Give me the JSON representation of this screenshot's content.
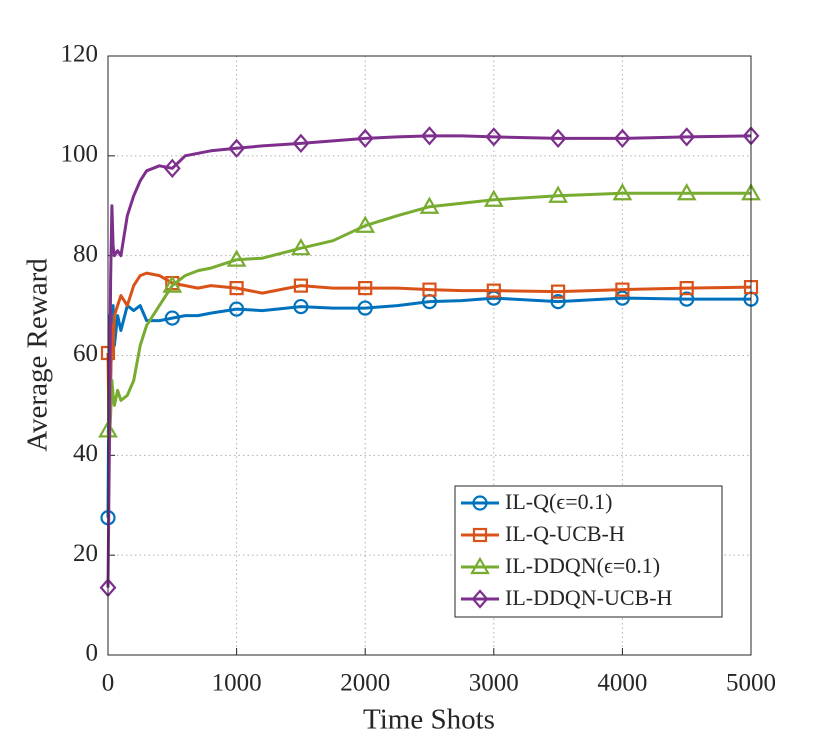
{
  "chart_data": {
    "type": "line",
    "x_label": "Time Shots",
    "y_label": "Average Reward",
    "x": [
      0,
      10,
      20,
      30,
      40,
      50,
      75,
      100,
      150,
      200,
      250,
      300,
      400,
      500,
      600,
      700,
      800,
      1000,
      1200,
      1500,
      1750,
      2000,
      2250,
      2500,
      2750,
      3000,
      3500,
      4000,
      4500,
      5000
    ],
    "series": [
      {
        "name": "IL-Q(ϵ=0.1)",
        "color": "#0072bd",
        "marker": "circle",
        "values": [
          27.5,
          68,
          55,
          65,
          70,
          62,
          68,
          65,
          70,
          69,
          70,
          67,
          67,
          67.5,
          68,
          68,
          68.5,
          69.3,
          69,
          69.8,
          69.5,
          69.5,
          70,
          70.8,
          71,
          71.5,
          70.8,
          71.5,
          71.3,
          71.3
        ]
      },
      {
        "name": "IL-Q-UCB-H",
        "color": "#d95319",
        "marker": "square",
        "values": [
          60.5,
          41,
          55,
          66,
          62,
          68,
          70,
          72,
          70,
          74,
          76,
          76.5,
          76,
          74.5,
          74,
          73.5,
          74,
          73.5,
          72.5,
          74,
          73.5,
          73.5,
          73.5,
          73.2,
          73,
          73,
          72.8,
          73.2,
          73.5,
          73.7
        ]
      },
      {
        "name": "IL-DDQN(ϵ=0.1)",
        "color": "#77ac30",
        "marker": "triangle",
        "values": [
          45,
          42,
          48,
          55,
          52,
          50,
          53,
          51,
          52,
          55,
          62,
          66,
          70,
          74,
          76,
          77,
          77.5,
          79.2,
          79.5,
          81.5,
          83,
          86,
          88,
          89.8,
          90.5,
          91.2,
          92,
          92.5,
          92.5,
          92.5
        ]
      },
      {
        "name": "IL-DDQN-UCB-H",
        "color": "#7e2f8e",
        "marker": "diamond",
        "values": [
          13.5,
          40,
          75,
          90,
          82,
          80,
          81,
          80,
          88,
          92,
          95,
          97,
          98,
          97.5,
          100,
          100.5,
          101,
          101.5,
          102,
          102.5,
          103,
          103.5,
          103.8,
          104,
          104,
          103.8,
          103.5,
          103.5,
          103.8,
          104
        ]
      }
    ],
    "xlim": [
      0,
      5000
    ],
    "xticks": [
      0,
      1000,
      2000,
      3000,
      4000,
      5000
    ],
    "ylim": [
      0,
      120
    ],
    "yticks": [
      0,
      20,
      40,
      60,
      80,
      100,
      120
    ],
    "grid": true,
    "legend": "lower right"
  }
}
